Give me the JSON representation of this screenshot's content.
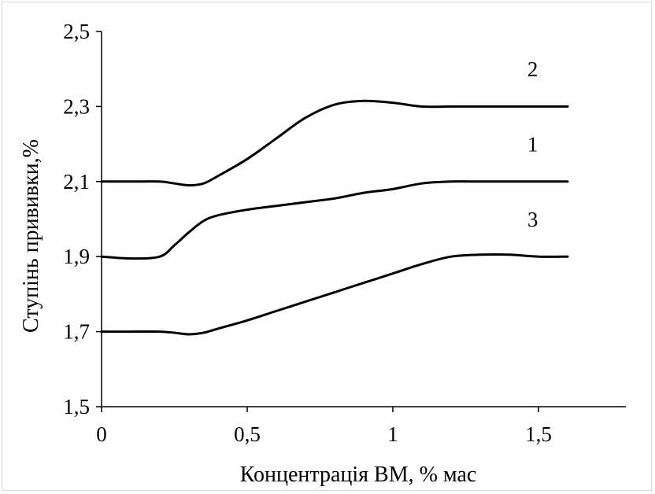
{
  "chart_data": {
    "type": "line",
    "title": "",
    "xlabel": "Концентрація ВМ, % мас",
    "ylabel": "Ступінь прививки,%",
    "xlim": [
      0,
      1.8
    ],
    "ylim": [
      1.5,
      2.5
    ],
    "x_ticks": [
      0,
      0.5,
      1,
      1.5
    ],
    "x_tick_labels": [
      "0",
      "0,5",
      "1",
      "1,5"
    ],
    "y_ticks": [
      1.5,
      1.7,
      1.9,
      2.1,
      2.3,
      2.5
    ],
    "y_tick_labels": [
      "1,5",
      "1,7",
      "1,9",
      "2,1",
      "2,3",
      "2,5"
    ],
    "grid": false,
    "line_color": "#000000",
    "series": [
      {
        "label": "1",
        "x": [
          0,
          0.1,
          0.2,
          0.25,
          0.3,
          0.35,
          0.4,
          0.5,
          0.6,
          0.7,
          0.8,
          0.9,
          1.0,
          1.1,
          1.2,
          1.3,
          1.4,
          1.5,
          1.6
        ],
        "y": [
          1.9,
          1.895,
          1.9,
          1.93,
          1.965,
          1.995,
          2.01,
          2.025,
          2.035,
          2.045,
          2.055,
          2.07,
          2.08,
          2.095,
          2.1,
          2.1,
          2.1,
          2.1,
          2.1
        ]
      },
      {
        "label": "2",
        "x": [
          0,
          0.1,
          0.2,
          0.25,
          0.3,
          0.35,
          0.4,
          0.5,
          0.6,
          0.7,
          0.8,
          0.9,
          1.0,
          1.1,
          1.2,
          1.3,
          1.4,
          1.5,
          1.6
        ],
        "y": [
          2.1,
          2.1,
          2.1,
          2.095,
          2.09,
          2.095,
          2.115,
          2.16,
          2.215,
          2.27,
          2.305,
          2.315,
          2.31,
          2.3,
          2.3,
          2.3,
          2.3,
          2.3,
          2.3
        ]
      },
      {
        "label": "3",
        "x": [
          0,
          0.1,
          0.2,
          0.25,
          0.3,
          0.35,
          0.4,
          0.5,
          0.6,
          0.7,
          0.8,
          0.9,
          1.0,
          1.1,
          1.2,
          1.3,
          1.4,
          1.5,
          1.6
        ],
        "y": [
          1.7,
          1.7,
          1.7,
          1.697,
          1.693,
          1.697,
          1.708,
          1.73,
          1.755,
          1.78,
          1.805,
          1.83,
          1.855,
          1.88,
          1.9,
          1.905,
          1.905,
          1.9,
          1.9
        ]
      }
    ],
    "series_labels": [
      {
        "text": "2",
        "x": 1.48,
        "y": 2.38
      },
      {
        "text": "1",
        "x": 1.48,
        "y": 2.18
      },
      {
        "text": "3",
        "x": 1.48,
        "y": 1.98
      }
    ]
  }
}
